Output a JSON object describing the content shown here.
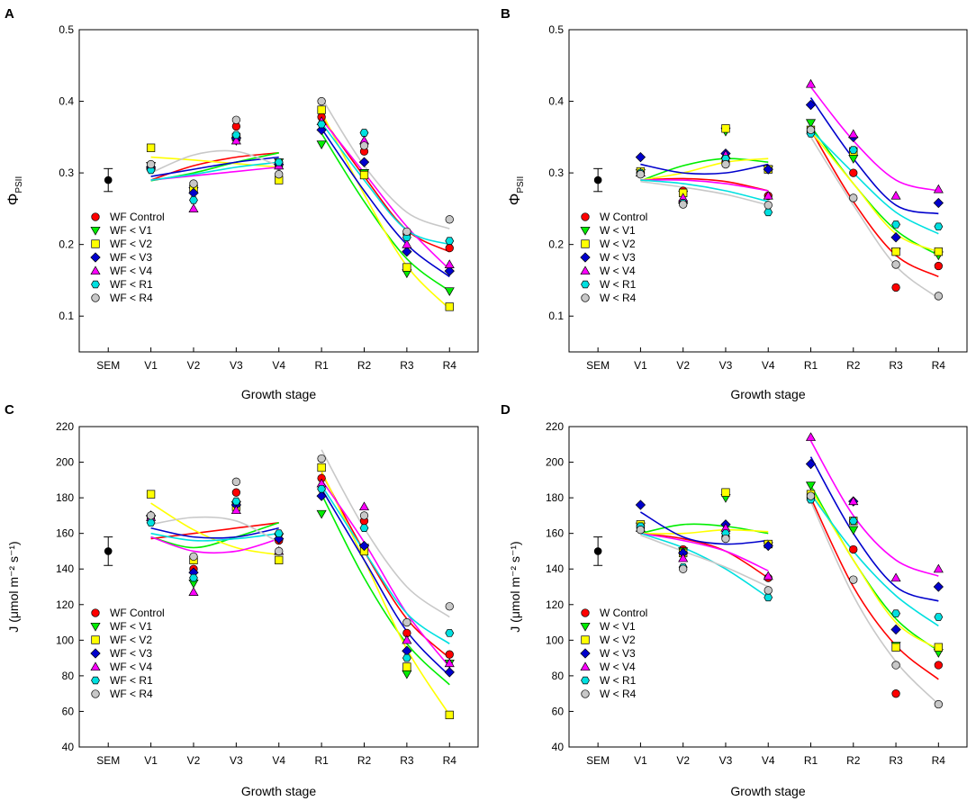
{
  "chart_data": [
    {
      "type": "scatter",
      "panel_label": "A",
      "ylabel_main": "Φ",
      "ylabel_sub": "PSII",
      "xlabel": "Growth stage",
      "ylim": [
        0.05,
        0.5
      ],
      "yticks": [
        "0.1",
        "0.2",
        "0.3",
        "0.4",
        "0.5"
      ],
      "ytick_values": [
        0.1,
        0.2,
        0.3,
        0.4,
        0.5
      ],
      "categories": [
        "SEM",
        "V1",
        "V2",
        "V3",
        "V4",
        "R1",
        "R2",
        "R3",
        "R4"
      ],
      "sem": {
        "mean": 0.29,
        "err": 0.016
      },
      "legend_position": "lower-left",
      "series": [
        {
          "name": "WF Control",
          "color": "#ff0000",
          "marker": "circle",
          "values": [
            0.305,
            0.282,
            0.365,
            0.31,
            0.378,
            0.33,
            0.215,
            0.195
          ],
          "veg_fit": [
            0.29,
            0.31,
            0.322,
            0.328
          ],
          "rep_fit": [
            0.378,
            0.295,
            0.22,
            0.19
          ]
        },
        {
          "name": "WF < V1",
          "color": "#00ee00",
          "marker": "triangle-down",
          "values": [
            0.31,
            0.275,
            0.345,
            0.315,
            0.34,
            0.3,
            0.16,
            0.135
          ],
          "veg_fit": [
            0.289,
            0.3,
            0.315,
            0.328
          ],
          "rep_fit": [
            0.355,
            0.26,
            0.18,
            0.135
          ]
        },
        {
          "name": "WF < V2",
          "color": "#ffff00",
          "marker": "square",
          "values": [
            0.335,
            0.278,
            0.35,
            0.29,
            0.388,
            0.297,
            0.168,
            0.113
          ],
          "veg_fit": [
            0.322,
            0.318,
            0.313,
            0.308
          ],
          "rep_fit": [
            0.385,
            0.27,
            0.17,
            0.11
          ]
        },
        {
          "name": "WF < V3",
          "color": "#0000cc",
          "marker": "diamond",
          "values": [
            0.308,
            0.272,
            0.348,
            0.312,
            0.36,
            0.315,
            0.19,
            0.163
          ],
          "veg_fit": [
            0.295,
            0.305,
            0.315,
            0.322
          ],
          "rep_fit": [
            0.362,
            0.275,
            0.2,
            0.155
          ]
        },
        {
          "name": "WF < V4",
          "color": "#ff00ff",
          "marker": "triangle-up",
          "values": [
            0.31,
            0.25,
            0.345,
            0.31,
            0.372,
            0.345,
            0.2,
            0.172
          ],
          "veg_fit": [
            0.29,
            0.296,
            0.302,
            0.308
          ],
          "rep_fit": [
            0.375,
            0.3,
            0.225,
            0.165
          ]
        },
        {
          "name": "WF < R1",
          "color": "#00e0e0",
          "marker": "hexagon",
          "values": [
            0.304,
            0.262,
            0.353,
            0.315,
            0.368,
            0.356,
            0.21,
            0.205
          ],
          "veg_fit": [
            0.29,
            0.298,
            0.308,
            0.315
          ],
          "rep_fit": [
            0.37,
            0.29,
            0.22,
            0.2
          ]
        },
        {
          "name": "WF < R4",
          "color": "#c8c8c8",
          "marker": "circle",
          "values": [
            0.312,
            0.285,
            0.374,
            0.298,
            0.4,
            0.338,
            0.218,
            0.235
          ],
          "veg_fit": [
            0.3,
            0.325,
            0.33,
            0.31
          ],
          "rep_fit": [
            0.405,
            0.31,
            0.245,
            0.222
          ]
        }
      ]
    },
    {
      "type": "scatter",
      "panel_label": "B",
      "ylabel_main": "Φ",
      "ylabel_sub": "PSII",
      "xlabel": "Growth stage",
      "ylim": [
        0.05,
        0.5
      ],
      "yticks": [
        "0.1",
        "0.2",
        "0.3",
        "0.4",
        "0.5"
      ],
      "ytick_values": [
        0.1,
        0.2,
        0.3,
        0.4,
        0.5
      ],
      "categories": [
        "SEM",
        "V1",
        "V2",
        "V3",
        "V4",
        "R1",
        "R2",
        "R3",
        "R4"
      ],
      "sem": {
        "mean": 0.29,
        "err": 0.016
      },
      "legend_position": "lower-left",
      "series": [
        {
          "name": "W Control",
          "color": "#ff0000",
          "marker": "circle",
          "values": [
            0.3,
            0.275,
            0.315,
            0.268,
            0.358,
            0.3,
            0.14,
            0.17
          ],
          "veg_fit": [
            0.29,
            0.292,
            0.288,
            0.275
          ],
          "rep_fit": [
            0.36,
            0.26,
            0.185,
            0.155
          ]
        },
        {
          "name": "W < V1",
          "color": "#00ee00",
          "marker": "triangle-down",
          "values": [
            0.3,
            0.27,
            0.358,
            0.305,
            0.37,
            0.32,
            0.19,
            0.185
          ],
          "veg_fit": [
            0.289,
            0.31,
            0.32,
            0.315
          ],
          "rep_fit": [
            0.365,
            0.285,
            0.22,
            0.185
          ]
        },
        {
          "name": "W < V2",
          "color": "#ffff00",
          "marker": "square",
          "values": [
            0.302,
            0.272,
            0.362,
            0.305,
            0.36,
            0.33,
            0.19,
            0.19
          ],
          "veg_fit": [
            0.29,
            0.3,
            0.315,
            0.32
          ],
          "rep_fit": [
            0.358,
            0.285,
            0.215,
            0.19
          ]
        },
        {
          "name": "W < V3",
          "color": "#0000cc",
          "marker": "diamond",
          "values": [
            0.322,
            0.258,
            0.327,
            0.305,
            0.395,
            0.35,
            0.21,
            0.258
          ],
          "veg_fit": [
            0.312,
            0.3,
            0.3,
            0.312
          ],
          "rep_fit": [
            0.405,
            0.32,
            0.255,
            0.243
          ]
        },
        {
          "name": "W < V4",
          "color": "#ff00ff",
          "marker": "triangle-up",
          "values": [
            0.3,
            0.265,
            0.325,
            0.268,
            0.424,
            0.354,
            0.268,
            0.277
          ],
          "veg_fit": [
            0.29,
            0.29,
            0.285,
            0.275
          ],
          "rep_fit": [
            0.42,
            0.345,
            0.29,
            0.275
          ]
        },
        {
          "name": "W < R1",
          "color": "#00e0e0",
          "marker": "hexagon",
          "values": [
            0.3,
            0.258,
            0.32,
            0.245,
            0.355,
            0.332,
            0.228,
            0.225
          ],
          "veg_fit": [
            0.29,
            0.285,
            0.275,
            0.26
          ],
          "rep_fit": [
            0.36,
            0.3,
            0.245,
            0.215
          ]
        },
        {
          "name": "W < R4",
          "color": "#c8c8c8",
          "marker": "circle",
          "values": [
            0.298,
            0.256,
            0.312,
            0.255,
            0.36,
            0.265,
            0.172,
            0.128
          ],
          "veg_fit": [
            0.288,
            0.28,
            0.27,
            0.255
          ],
          "rep_fit": [
            0.35,
            0.255,
            0.17,
            0.125
          ]
        }
      ]
    },
    {
      "type": "scatter",
      "panel_label": "C",
      "ylabel_main": "J (μmol m⁻² s⁻¹)",
      "ylabel_sub": "",
      "xlabel": "Growth stage",
      "ylim": [
        40,
        220
      ],
      "yticks": [
        "40",
        "60",
        "80",
        "100",
        "120",
        "140",
        "160",
        "180",
        "200",
        "220"
      ],
      "ytick_values": [
        40,
        60,
        80,
        100,
        120,
        140,
        160,
        180,
        200,
        220
      ],
      "categories": [
        "SEM",
        "V1",
        "V2",
        "V3",
        "V4",
        "R1",
        "R2",
        "R3",
        "R4"
      ],
      "sem": {
        "mean": 150,
        "err": 8
      },
      "legend_position": "lower-left",
      "series": [
        {
          "name": "WF Control",
          "color": "#ff0000",
          "marker": "circle",
          "values": [
            168,
            140,
            183,
            156,
            191,
            167,
            104,
            92
          ],
          "veg_fit": [
            157,
            160,
            163,
            166
          ],
          "rep_fit": [
            194,
            150,
            112,
            90
          ]
        },
        {
          "name": "WF < V1",
          "color": "#00ee00",
          "marker": "triangle-down",
          "values": [
            168,
            132,
            176,
            158,
            171,
            152,
            81,
            87
          ],
          "veg_fit": [
            158,
            152,
            158,
            166
          ],
          "rep_fit": [
            182,
            135,
            98,
            75
          ]
        },
        {
          "name": "WF < V2",
          "color": "#ffff00",
          "marker": "square",
          "values": [
            182,
            145,
            175,
            145,
            197,
            150,
            85,
            58
          ],
          "veg_fit": [
            177,
            162,
            152,
            148
          ],
          "rep_fit": [
            195,
            145,
            95,
            58
          ]
        },
        {
          "name": "WF < V3",
          "color": "#0000cc",
          "marker": "diamond",
          "values": [
            170,
            138,
            176,
            157,
            181,
            153,
            94,
            82
          ],
          "veg_fit": [
            163,
            158,
            158,
            163
          ],
          "rep_fit": [
            185,
            145,
            105,
            80
          ]
        },
        {
          "name": "WF < V4",
          "color": "#ff00ff",
          "marker": "triangle-up",
          "values": [
            169,
            127,
            173,
            150,
            188,
            175,
            100,
            87
          ],
          "veg_fit": [
            158,
            150,
            150,
            157
          ],
          "rep_fit": [
            190,
            155,
            115,
            85
          ]
        },
        {
          "name": "WF < R1",
          "color": "#00e0e0",
          "marker": "hexagon",
          "values": [
            166,
            135,
            178,
            160,
            185,
            163,
            90,
            104
          ],
          "veg_fit": [
            160,
            156,
            157,
            160
          ],
          "rep_fit": [
            187,
            150,
            115,
            98
          ]
        },
        {
          "name": "WF < R4",
          "color": "#c8c8c8",
          "marker": "circle",
          "values": [
            170,
            147,
            189,
            150,
            202,
            170,
            110,
            119
          ],
          "veg_fit": [
            165,
            169,
            167,
            155
          ],
          "rep_fit": [
            207,
            163,
            130,
            113
          ]
        }
      ]
    },
    {
      "type": "scatter",
      "panel_label": "D",
      "ylabel_main": "J (μmol m⁻² s⁻¹)",
      "ylabel_sub": "",
      "xlabel": "Growth stage",
      "ylim": [
        40,
        220
      ],
      "yticks": [
        "40",
        "60",
        "80",
        "100",
        "120",
        "140",
        "160",
        "180",
        "200",
        "220"
      ],
      "ytick_values": [
        40,
        60,
        80,
        100,
        120,
        140,
        160,
        180,
        200,
        220
      ],
      "categories": [
        "SEM",
        "V1",
        "V2",
        "V3",
        "V4",
        "R1",
        "R2",
        "R3",
        "R4"
      ],
      "sem": {
        "mean": 150,
        "err": 8
      },
      "legend_position": "lower-left",
      "series": [
        {
          "name": "W Control",
          "color": "#ff0000",
          "marker": "circle",
          "values": [
            163,
            151,
            158,
            135,
            180,
            151,
            70,
            86
          ],
          "veg_fit": [
            160,
            157,
            150,
            135
          ],
          "rep_fit": [
            180,
            130,
            97,
            78
          ]
        },
        {
          "name": "W < V1",
          "color": "#00ee00",
          "marker": "triangle-down",
          "values": [
            164,
            150,
            180,
            153,
            187,
            162,
            97,
            93
          ],
          "veg_fit": [
            160,
            165,
            164,
            160
          ],
          "rep_fit": [
            187,
            145,
            112,
            94
          ]
        },
        {
          "name": "W < V2",
          "color": "#ffff00",
          "marker": "square",
          "values": [
            165,
            149,
            183,
            154,
            182,
            167,
            96,
            96
          ],
          "veg_fit": [
            160,
            160,
            162,
            161
          ],
          "rep_fit": [
            185,
            145,
            110,
            95
          ]
        },
        {
          "name": "W < V3",
          "color": "#0000cc",
          "marker": "diamond",
          "values": [
            176,
            149,
            165,
            153,
            199,
            178,
            106,
            130
          ],
          "veg_fit": [
            172,
            158,
            154,
            156
          ],
          "rep_fit": [
            203,
            160,
            130,
            122
          ]
        },
        {
          "name": "W < V4",
          "color": "#ff00ff",
          "marker": "triangle-up",
          "values": [
            163,
            146,
            163,
            136,
            214,
            178,
            135,
            140
          ],
          "veg_fit": [
            160,
            156,
            150,
            139
          ],
          "rep_fit": [
            212,
            170,
            145,
            136
          ]
        },
        {
          "name": "W < R1",
          "color": "#00e0e0",
          "marker": "hexagon",
          "values": [
            164,
            141,
            160,
            124,
            179,
            167,
            115,
            113
          ],
          "veg_fit": [
            160,
            152,
            140,
            124
          ],
          "rep_fit": [
            182,
            150,
            125,
            108
          ]
        },
        {
          "name": "W < R4",
          "color": "#c8c8c8",
          "marker": "circle",
          "values": [
            162,
            140,
            157,
            128,
            181,
            134,
            86,
            64
          ],
          "veg_fit": [
            159,
            150,
            141,
            130
          ],
          "rep_fit": [
            178,
            125,
            88,
            64
          ]
        }
      ]
    }
  ]
}
